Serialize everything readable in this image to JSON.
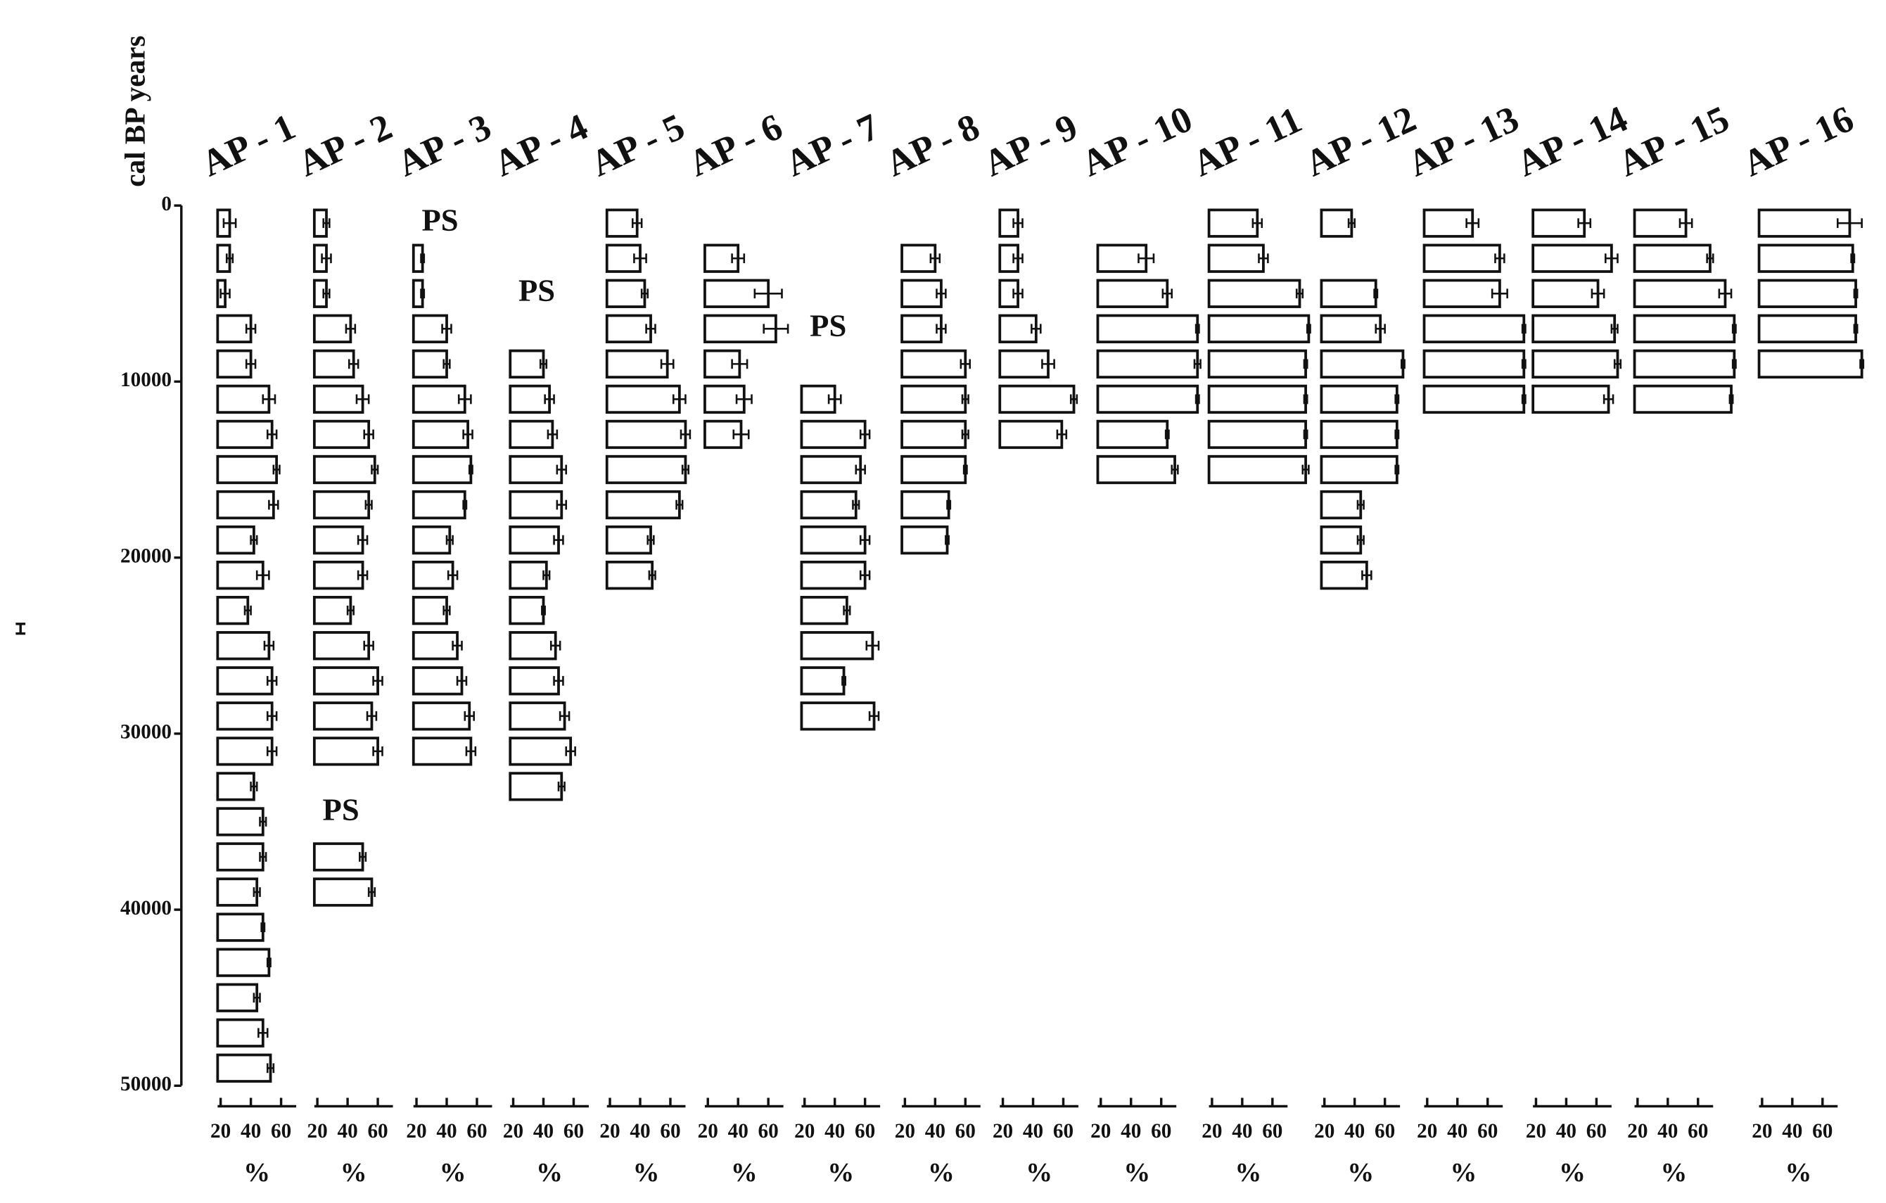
{
  "chart_data": {
    "type": "bar",
    "ylabel": "cal BP years",
    "ylim": [
      0,
      50000
    ],
    "yticks": [
      0,
      10000,
      20000,
      30000,
      40000,
      50000
    ],
    "xlim": [
      18,
      70
    ],
    "xticks": [
      20,
      40,
      60
    ],
    "xlabel": "%",
    "panels": [
      {
        "title": "AP - 1",
        "y": [
          1000,
          3000,
          5000,
          7000,
          9000,
          11000,
          13000,
          15000,
          17000,
          19000,
          21000,
          23000,
          25000,
          27000,
          29000,
          31000,
          33000,
          35000,
          37000,
          39000,
          41000,
          43000,
          45000,
          47000,
          49000
        ],
        "values": [
          26,
          26,
          23,
          40,
          40,
          52,
          54,
          57,
          55,
          42,
          48,
          38,
          52,
          54,
          54,
          54,
          42,
          48,
          48,
          44,
          48,
          52,
          44,
          48,
          53
        ],
        "errors": [
          4,
          2,
          3,
          3,
          3,
          4,
          3,
          2,
          3,
          2,
          4,
          2,
          3,
          3,
          3,
          3,
          2,
          2,
          2,
          2,
          1,
          1,
          2,
          3,
          2
        ]
      },
      {
        "title": "AP - 2",
        "y": [
          1000,
          3000,
          5000,
          7000,
          9000,
          11000,
          13000,
          15000,
          17000,
          19000,
          21000,
          23000,
          25000,
          27000,
          29000,
          31000,
          37000,
          39000
        ],
        "values": [
          26,
          26,
          26,
          42,
          44,
          50,
          54,
          58,
          54,
          50,
          50,
          42,
          54,
          60,
          56,
          60,
          50,
          56
        ],
        "errors": [
          2,
          3,
          2,
          3,
          3,
          4,
          3,
          2,
          2,
          3,
          3,
          2,
          3,
          3,
          3,
          3,
          2,
          2
        ],
        "annotations": [
          {
            "text": "PS",
            "y": 34500
          }
        ]
      },
      {
        "title": "AP - 3",
        "y": [
          3000,
          5000,
          7000,
          9000,
          11000,
          13000,
          15000,
          17000,
          19000,
          21000,
          23000,
          25000,
          27000,
          29000,
          31000
        ],
        "values": [
          24,
          24,
          40,
          40,
          52,
          54,
          56,
          52,
          42,
          44,
          40,
          47,
          50,
          55,
          56
        ],
        "errors": [
          1,
          1,
          3,
          2,
          4,
          3,
          1,
          1,
          2,
          3,
          2,
          3,
          3,
          3,
          3
        ],
        "annotations": [
          {
            "text": "PS",
            "y": 1000
          }
        ]
      },
      {
        "title": "AP - 4",
        "y": [
          9000,
          11000,
          13000,
          15000,
          17000,
          19000,
          21000,
          23000,
          25000,
          27000,
          29000,
          31000,
          33000
        ],
        "values": [
          40,
          44,
          46,
          52,
          52,
          50,
          42,
          40,
          48,
          50,
          54,
          58,
          52
        ],
        "errors": [
          2,
          3,
          3,
          3,
          3,
          3,
          2,
          1,
          3,
          3,
          3,
          3,
          2
        ],
        "annotations": [
          {
            "text": "PS",
            "y": 5000
          }
        ]
      },
      {
        "title": "AP - 5",
        "y": [
          1000,
          3000,
          5000,
          7000,
          9000,
          11000,
          13000,
          15000,
          17000,
          19000,
          21000
        ],
        "values": [
          38,
          40,
          43,
          47,
          58,
          66,
          70,
          70,
          66,
          47,
          48
        ],
        "errors": [
          3,
          4,
          2,
          3,
          4,
          4,
          3,
          2,
          2,
          2,
          2
        ]
      },
      {
        "title": "AP - 6",
        "y": [
          3000,
          5000,
          7000,
          9000,
          11000,
          13000
        ],
        "values": [
          40,
          60,
          65,
          41,
          44,
          42
        ],
        "errors": [
          4,
          9,
          8,
          5,
          5,
          5
        ]
      },
      {
        "title": "AP - 7",
        "y": [
          11000,
          13000,
          15000,
          17000,
          19000,
          21000,
          23000,
          25000,
          27000,
          29000
        ],
        "values": [
          40,
          60,
          57,
          54,
          60,
          60,
          48,
          65,
          46,
          66
        ],
        "errors": [
          4,
          3,
          3,
          2,
          3,
          3,
          2,
          4,
          1,
          3
        ],
        "annotations": [
          {
            "text": "PS",
            "y": 7000
          }
        ]
      },
      {
        "title": "AP - 8",
        "y": [
          3000,
          5000,
          7000,
          9000,
          11000,
          13000,
          15000,
          17000,
          19000
        ],
        "values": [
          40,
          44,
          44,
          60,
          60,
          60,
          60,
          49,
          48
        ],
        "errors": [
          3,
          3,
          3,
          3,
          2,
          2,
          1,
          1,
          1
        ]
      },
      {
        "title": "AP - 9",
        "y": [
          1000,
          3000,
          5000,
          7000,
          9000,
          11000,
          13000
        ],
        "values": [
          30,
          30,
          30,
          42,
          50,
          67,
          59
        ],
        "errors": [
          3,
          3,
          3,
          3,
          4,
          2,
          3
        ]
      },
      {
        "title": "AP - 10",
        "y": [
          3000,
          5000,
          7000,
          9000,
          11000,
          13000,
          15000
        ],
        "values": [
          50,
          64,
          84,
          84,
          84,
          64,
          69
        ],
        "errors": [
          5,
          3,
          1,
          2,
          1,
          1,
          2
        ]
      },
      {
        "title": "AP - 11",
        "y": [
          1000,
          3000,
          5000,
          7000,
          9000,
          11000,
          13000,
          15000
        ],
        "values": [
          50,
          54,
          78,
          84,
          82,
          82,
          82,
          82
        ],
        "errors": [
          3,
          3,
          2,
          1,
          1,
          1,
          1,
          2
        ]
      },
      {
        "title": "AP - 12",
        "y": [
          1000,
          5000,
          7000,
          9000,
          11000,
          13000,
          15000,
          17000,
          19000,
          21000
        ],
        "values": [
          38,
          54,
          57,
          72,
          68,
          68,
          68,
          44,
          44,
          48
        ],
        "errors": [
          2,
          1,
          3,
          1,
          1,
          1,
          1,
          2,
          2,
          3
        ]
      },
      {
        "title": "AP - 13",
        "y": [
          1000,
          3000,
          5000,
          7000,
          9000,
          11000
        ],
        "values": [
          50,
          68,
          68,
          84,
          84,
          84
        ],
        "errors": [
          4,
          3,
          5,
          1,
          1,
          1
        ]
      },
      {
        "title": "AP - 14",
        "y": [
          1000,
          3000,
          5000,
          7000,
          9000,
          11000
        ],
        "values": [
          52,
          70,
          61,
          72,
          74,
          68
        ],
        "errors": [
          4,
          4,
          4,
          2,
          2,
          3
        ]
      },
      {
        "title": "AP - 15",
        "y": [
          1000,
          3000,
          5000,
          7000,
          9000,
          11000
        ],
        "values": [
          52,
          68,
          78,
          84,
          84,
          82
        ],
        "errors": [
          4,
          2,
          4,
          1,
          1,
          1
        ]
      },
      {
        "title": "AP - 16",
        "y": [
          1000,
          3000,
          5000,
          7000,
          9000
        ],
        "values": [
          78,
          80,
          82,
          82,
          86
        ],
        "errors": [
          8,
          1,
          1,
          1,
          1
        ]
      }
    ]
  }
}
